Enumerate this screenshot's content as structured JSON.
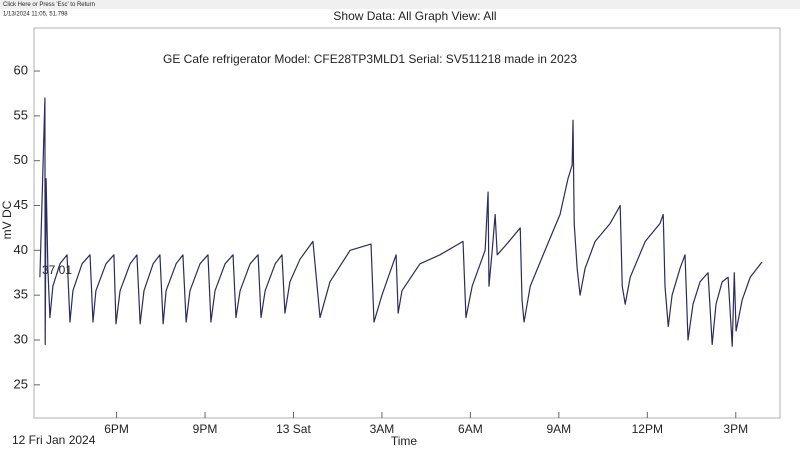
{
  "topbar": "Click Here or Press 'Esc' to Return",
  "timestamp": "1/13/2024 11:05, 51.798",
  "chart_data": {
    "type": "line",
    "title": "Show Data: All   Graph View: All",
    "subtitle": "GE Cafe refrigerator Model: CFE28TP3MLD1 Serial: SV511218 made in 2023",
    "ylabel": "mV DC",
    "xlabel": "Time",
    "x_start_label": "12 Fri Jan 2024",
    "annotation": "37.01",
    "x": [
      15.4,
      15.57,
      15.58,
      15.61,
      15.67,
      15.74,
      15.84,
      16.08,
      16.32,
      16.42,
      16.52,
      16.83,
      17.1,
      17.2,
      17.3,
      17.64,
      17.91,
      17.98,
      18.12,
      18.46,
      18.69,
      18.8,
      18.93,
      19.24,
      19.47,
      19.58,
      19.68,
      20.02,
      20.25,
      20.36,
      20.49,
      20.83,
      21.1,
      21.2,
      21.34,
      21.68,
      21.95,
      22.05,
      22.19,
      22.53,
      22.8,
      22.9,
      23.04,
      23.38,
      23.61,
      23.71,
      23.88,
      24.22,
      24.66,
      24.9,
      25.24,
      25.92,
      26.63,
      26.73,
      27.0,
      27.48,
      27.55,
      27.68,
      28.29,
      28.97,
      29.75,
      29.85,
      30.06,
      30.5,
      30.6,
      30.63,
      30.74,
      30.84,
      30.91,
      31.18,
      31.69,
      31.75,
      31.82,
      32.03,
      32.53,
      33.04,
      33.31,
      33.45,
      33.48,
      33.52,
      33.62,
      33.72,
      33.89,
      34.23,
      34.74,
      35.08,
      35.15,
      35.25,
      35.42,
      35.93,
      36.43,
      36.54,
      36.6,
      36.71,
      36.84,
      37.11,
      37.28,
      37.38,
      37.55,
      37.79,
      38.06,
      38.2,
      38.33,
      38.54,
      38.74,
      38.88,
      38.95,
      39.01,
      39.22,
      39.49,
      39.89
    ],
    "series": [
      {
        "name": "mV DC",
        "color": "#2b2b5e",
        "values": [
          37,
          57,
          29.5,
          48,
          38,
          32.5,
          36,
          38.5,
          39.5,
          32,
          35.5,
          38.5,
          39.5,
          32,
          35.5,
          38.5,
          39.5,
          31.8,
          35.5,
          38.5,
          39.5,
          31.8,
          35.5,
          38.5,
          39.5,
          31.8,
          35.5,
          38.5,
          39.5,
          32,
          35.5,
          38.5,
          39.5,
          32,
          35.5,
          38.5,
          39.5,
          32.5,
          35.5,
          38.5,
          39.5,
          32.5,
          35.5,
          38.5,
          39.5,
          33,
          36.5,
          39,
          41,
          32.5,
          36.5,
          40,
          40.7,
          32,
          35,
          39.5,
          33,
          35.5,
          38.5,
          39.5,
          41,
          32.5,
          36,
          40,
          46.5,
          36,
          40,
          44,
          39.5,
          40.5,
          42.5,
          34.5,
          32,
          36,
          40,
          44,
          48,
          49.5,
          54.5,
          43,
          38,
          35,
          38,
          41,
          43,
          45,
          36,
          34,
          37,
          41,
          43,
          44,
          36,
          31.5,
          35,
          38,
          39.5,
          30,
          34,
          36.5,
          37.5,
          29.5,
          34,
          36.5,
          37,
          29.3,
          37.5,
          31,
          34.5,
          37,
          38.7
        ]
      }
    ],
    "xlim": [
      15.2,
      40.5
    ],
    "xticks": [
      {
        "value": 18,
        "label": "6PM"
      },
      {
        "value": 21,
        "label": "9PM"
      },
      {
        "value": 24,
        "label": "13 Sat"
      },
      {
        "value": 27,
        "label": "3AM"
      },
      {
        "value": 30,
        "label": "6AM"
      },
      {
        "value": 33,
        "label": "9AM"
      },
      {
        "value": 36,
        "label": "12PM"
      },
      {
        "value": 39,
        "label": "3PM"
      }
    ],
    "ylim": [
      21.3,
      64.8
    ],
    "yticks": [
      25,
      30,
      35,
      40,
      45,
      50,
      55,
      60
    ],
    "grid": false
  }
}
